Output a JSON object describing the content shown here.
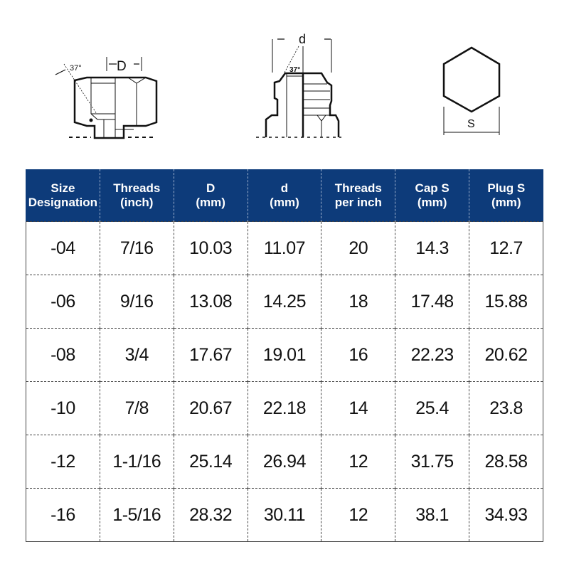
{
  "diagrams": {
    "cap": {
      "angle_label": "37°",
      "dimension_label": "D"
    },
    "plug": {
      "angle_label": "37°",
      "dimension_label": "d"
    },
    "hex": {
      "dimension_label": "S"
    }
  },
  "table": {
    "headers": [
      [
        "Size",
        "Designation"
      ],
      [
        "Threads",
        "(inch)"
      ],
      [
        "D",
        "(mm)"
      ],
      [
        "d",
        "(mm)"
      ],
      [
        "Threads",
        "per inch"
      ],
      [
        "Cap S",
        "(mm)"
      ],
      [
        "Plug S",
        "(mm)"
      ]
    ],
    "rows": [
      [
        "-04",
        "7/16",
        "10.03",
        "11.07",
        "20",
        "14.3",
        "12.7"
      ],
      [
        "-06",
        "9/16",
        "13.08",
        "14.25",
        "18",
        "17.48",
        "15.88"
      ],
      [
        "-08",
        "3/4",
        "17.67",
        "19.01",
        "16",
        "22.23",
        "20.62"
      ],
      [
        "-10",
        "7/8",
        "20.67",
        "22.18",
        "14",
        "25.4",
        "23.8"
      ],
      [
        "-12",
        "1-1/16",
        "25.14",
        "26.94",
        "12",
        "31.75",
        "28.58"
      ],
      [
        "-16",
        "1-5/16",
        "28.32",
        "30.11",
        "12",
        "38.1",
        "34.93"
      ]
    ]
  }
}
